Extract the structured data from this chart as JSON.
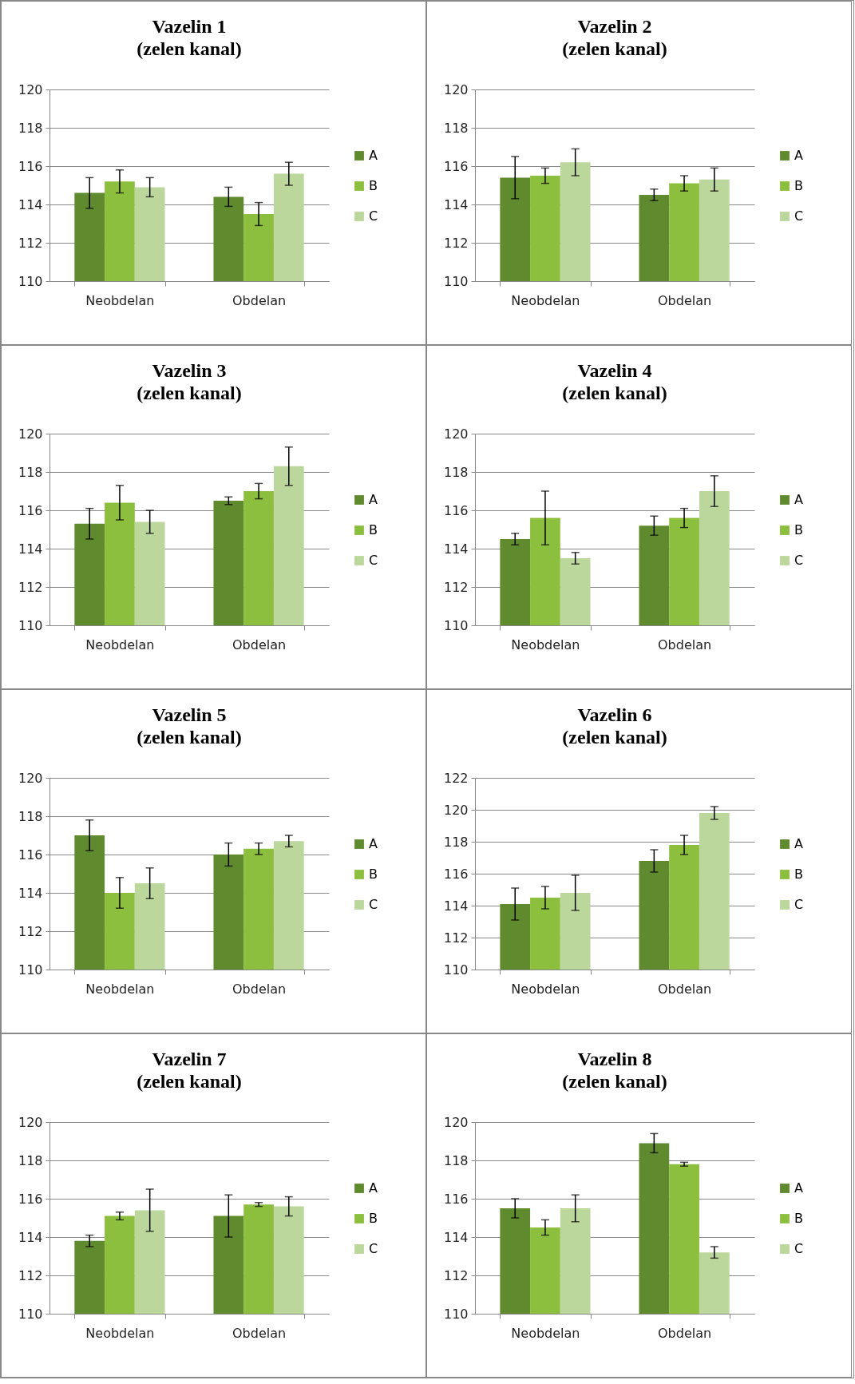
{
  "chart_data": [
    {
      "type": "bar",
      "title": "Vazelin 1",
      "subtitle": "(zelen kanal)",
      "categories": [
        "Neobdelan",
        "Obdelan"
      ],
      "ylim": [
        110,
        120
      ],
      "yticks": [
        110,
        112,
        114,
        116,
        118,
        120
      ],
      "grid": "y",
      "legend": "right",
      "series": [
        {
          "name": "A",
          "color": "#5f8a2e",
          "values": [
            114.6,
            114.4
          ],
          "errors": [
            0.8,
            0.5
          ]
        },
        {
          "name": "B",
          "color": "#8dbf3f",
          "values": [
            115.2,
            113.5
          ],
          "errors": [
            0.6,
            0.6
          ]
        },
        {
          "name": "C",
          "color": "#bcd79c",
          "values": [
            114.9,
            115.6
          ],
          "errors": [
            0.5,
            0.6
          ]
        }
      ]
    },
    {
      "type": "bar",
      "title": "Vazelin 2",
      "subtitle": "(zelen kanal)",
      "categories": [
        "Neobdelan",
        "Obdelan"
      ],
      "ylim": [
        110,
        120
      ],
      "yticks": [
        110,
        112,
        114,
        116,
        118,
        120
      ],
      "grid": "y",
      "legend": "right",
      "series": [
        {
          "name": "A",
          "color": "#5f8a2e",
          "values": [
            115.4,
            114.5
          ],
          "errors": [
            1.1,
            0.3
          ]
        },
        {
          "name": "B",
          "color": "#8dbf3f",
          "values": [
            115.5,
            115.1
          ],
          "errors": [
            0.4,
            0.4
          ]
        },
        {
          "name": "C",
          "color": "#bcd79c",
          "values": [
            116.2,
            115.3
          ],
          "errors": [
            0.7,
            0.6
          ]
        }
      ]
    },
    {
      "type": "bar",
      "title": "Vazelin 3",
      "subtitle": "(zelen kanal)",
      "categories": [
        "Neobdelan",
        "Obdelan"
      ],
      "ylim": [
        110,
        120
      ],
      "yticks": [
        110,
        112,
        114,
        116,
        118,
        120
      ],
      "grid": "y",
      "legend": "right",
      "series": [
        {
          "name": "A",
          "color": "#5f8a2e",
          "values": [
            115.3,
            116.5
          ],
          "errors": [
            0.8,
            0.2
          ]
        },
        {
          "name": "B",
          "color": "#8dbf3f",
          "values": [
            116.4,
            117.0
          ],
          "errors": [
            0.9,
            0.4
          ]
        },
        {
          "name": "C",
          "color": "#bcd79c",
          "values": [
            115.4,
            118.3
          ],
          "errors": [
            0.6,
            1.0
          ]
        }
      ]
    },
    {
      "type": "bar",
      "title": "Vazelin 4",
      "subtitle": "(zelen kanal)",
      "categories": [
        "Neobdelan",
        "Obdelan"
      ],
      "ylim": [
        110,
        120
      ],
      "yticks": [
        110,
        112,
        114,
        116,
        118,
        120
      ],
      "grid": "y",
      "legend": "right",
      "series": [
        {
          "name": "A",
          "color": "#5f8a2e",
          "values": [
            114.5,
            115.2
          ],
          "errors": [
            0.3,
            0.5
          ]
        },
        {
          "name": "B",
          "color": "#8dbf3f",
          "values": [
            115.6,
            115.6
          ],
          "errors": [
            1.4,
            0.5
          ]
        },
        {
          "name": "C",
          "color": "#bcd79c",
          "values": [
            113.5,
            117.0
          ],
          "errors": [
            0.3,
            0.8
          ]
        }
      ]
    },
    {
      "type": "bar",
      "title": "Vazelin 5",
      "subtitle": "(zelen kanal)",
      "categories": [
        "Neobdelan",
        "Obdelan"
      ],
      "ylim": [
        110,
        120
      ],
      "yticks": [
        110,
        112,
        114,
        116,
        118,
        120
      ],
      "grid": "y",
      "legend": "right",
      "series": [
        {
          "name": "A",
          "color": "#5f8a2e",
          "values": [
            117.0,
            116.0
          ],
          "errors": [
            0.8,
            0.6
          ]
        },
        {
          "name": "B",
          "color": "#8dbf3f",
          "values": [
            114.0,
            116.3
          ],
          "errors": [
            0.8,
            0.3
          ]
        },
        {
          "name": "C",
          "color": "#bcd79c",
          "values": [
            114.5,
            116.7
          ],
          "errors": [
            0.8,
            0.3
          ]
        }
      ]
    },
    {
      "type": "bar",
      "title": "Vazelin 6",
      "subtitle": "(zelen kanal)",
      "categories": [
        "Neobdelan",
        "Obdelan"
      ],
      "ylim": [
        110,
        122
      ],
      "yticks": [
        110,
        112,
        114,
        116,
        118,
        120,
        122
      ],
      "grid": "y",
      "legend": "right",
      "series": [
        {
          "name": "A",
          "color": "#5f8a2e",
          "values": [
            114.1,
            116.8
          ],
          "errors": [
            1.0,
            0.7
          ]
        },
        {
          "name": "B",
          "color": "#8dbf3f",
          "values": [
            114.5,
            117.8
          ],
          "errors": [
            0.7,
            0.6
          ]
        },
        {
          "name": "C",
          "color": "#bcd79c",
          "values": [
            114.8,
            119.8
          ],
          "errors": [
            1.1,
            0.4
          ]
        }
      ]
    },
    {
      "type": "bar",
      "title": "Vazelin 7",
      "subtitle": "(zelen kanal)",
      "categories": [
        "Neobdelan",
        "Obdelan"
      ],
      "ylim": [
        110,
        120
      ],
      "yticks": [
        110,
        112,
        114,
        116,
        118,
        120
      ],
      "grid": "y",
      "legend": "right",
      "series": [
        {
          "name": "A",
          "color": "#5f8a2e",
          "values": [
            113.8,
            115.1
          ],
          "errors": [
            0.3,
            1.1
          ]
        },
        {
          "name": "B",
          "color": "#8dbf3f",
          "values": [
            115.1,
            115.7
          ],
          "errors": [
            0.2,
            0.1
          ]
        },
        {
          "name": "C",
          "color": "#bcd79c",
          "values": [
            115.4,
            115.6
          ],
          "errors": [
            1.1,
            0.5
          ]
        }
      ]
    },
    {
      "type": "bar",
      "title": "Vazelin 8",
      "subtitle": "(zelen kanal)",
      "categories": [
        "Neobdelan",
        "Obdelan"
      ],
      "ylim": [
        110,
        120
      ],
      "yticks": [
        110,
        112,
        114,
        116,
        118,
        120
      ],
      "grid": "y",
      "legend": "right",
      "series": [
        {
          "name": "A",
          "color": "#5f8a2e",
          "values": [
            115.5,
            118.9
          ],
          "errors": [
            0.5,
            0.5
          ]
        },
        {
          "name": "B",
          "color": "#8dbf3f",
          "values": [
            114.5,
            117.8
          ],
          "errors": [
            0.4,
            0.1
          ]
        },
        {
          "name": "C",
          "color": "#bcd79c",
          "values": [
            115.5,
            113.2
          ],
          "errors": [
            0.7,
            0.3
          ]
        }
      ]
    }
  ]
}
